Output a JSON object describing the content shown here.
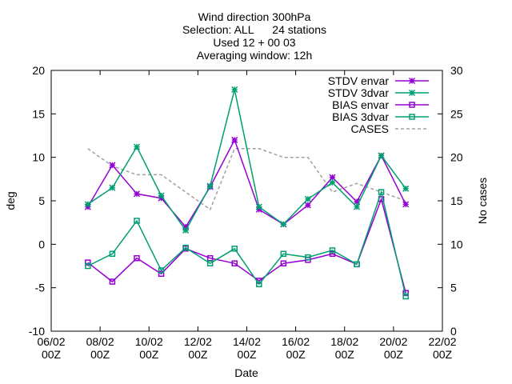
{
  "chart_data": {
    "type": "line",
    "title_lines": [
      "Wind direction 300hPa",
      "Selection: ALL      24 stations",
      "Used 12 + 00 03",
      "Averaging window: 12h"
    ],
    "xlabel": "Date",
    "ylabel": "deg",
    "y2label": "No cases",
    "xlim": [
      "2024-02-06 00Z",
      "2024-02-22 00Z"
    ],
    "ylim": [
      -10,
      20
    ],
    "y2lim": [
      0,
      30
    ],
    "x_ticks": [
      {
        "line1": "06/02",
        "line2": "00Z"
      },
      {
        "line1": "08/02",
        "line2": "00Z"
      },
      {
        "line1": "10/02",
        "line2": "00Z"
      },
      {
        "line1": "12/02",
        "line2": "00Z"
      },
      {
        "line1": "14/02",
        "line2": "00Z"
      },
      {
        "line1": "16/02",
        "line2": "00Z"
      },
      {
        "line1": "18/02",
        "line2": "00Z"
      },
      {
        "line1": "20/02",
        "line2": "00Z"
      },
      {
        "line1": "22/02",
        "line2": "00Z"
      }
    ],
    "y_ticks": [
      "-10",
      "-5",
      "0",
      "5",
      "10",
      "15",
      "20"
    ],
    "y2_ticks": [
      "0",
      "5",
      "10",
      "15",
      "20",
      "25",
      "30"
    ],
    "x": [
      "07/02 12Z",
      "08/02 12Z",
      "09/02 12Z",
      "10/02 12Z",
      "11/02 12Z",
      "12/02 12Z",
      "13/02 12Z",
      "14/02 12Z",
      "15/02 12Z",
      "16/02 12Z",
      "17/02 12Z",
      "18/02 12Z",
      "19/02 12Z",
      "20/02 12Z"
    ],
    "legend_position": "top-right",
    "grid": false,
    "series": [
      {
        "name": "STDV envar",
        "color": "#9400d3",
        "marker": "star",
        "axis": "left",
        "dash": false,
        "values": [
          4.3,
          9.1,
          5.8,
          5.3,
          2.0,
          6.6,
          12.0,
          4.0,
          2.3,
          4.5,
          7.7,
          4.9,
          10.2,
          4.6
        ]
      },
      {
        "name": "STDV 3dvar",
        "color": "#009e73",
        "marker": "star",
        "axis": "left",
        "dash": false,
        "values": [
          4.6,
          6.5,
          11.2,
          5.6,
          1.6,
          6.7,
          17.8,
          4.3,
          2.3,
          5.2,
          7.1,
          4.3,
          10.2,
          6.4
        ]
      },
      {
        "name": "BIAS envar",
        "color": "#9400d3",
        "marker": "square",
        "axis": "left",
        "dash": false,
        "values": [
          -2.1,
          -4.3,
          -1.6,
          -3.4,
          -0.5,
          -1.6,
          -2.2,
          -4.2,
          -2.2,
          -1.8,
          -1.1,
          -2.3,
          5.2,
          -5.6
        ]
      },
      {
        "name": "BIAS 3dvar",
        "color": "#009e73",
        "marker": "square",
        "axis": "left",
        "dash": false,
        "values": [
          -2.5,
          -1.1,
          2.7,
          -3.0,
          -0.4,
          -2.2,
          -0.5,
          -4.6,
          -1.1,
          -1.5,
          -0.7,
          -2.3,
          6.0,
          -6.0
        ]
      },
      {
        "name": "CASES",
        "color": "#a0a0a0",
        "marker": "none",
        "axis": "right",
        "dash": true,
        "values": [
          21,
          19,
          18,
          18,
          16,
          14,
          21,
          21,
          20,
          20,
          16,
          17,
          16,
          15
        ]
      }
    ]
  }
}
